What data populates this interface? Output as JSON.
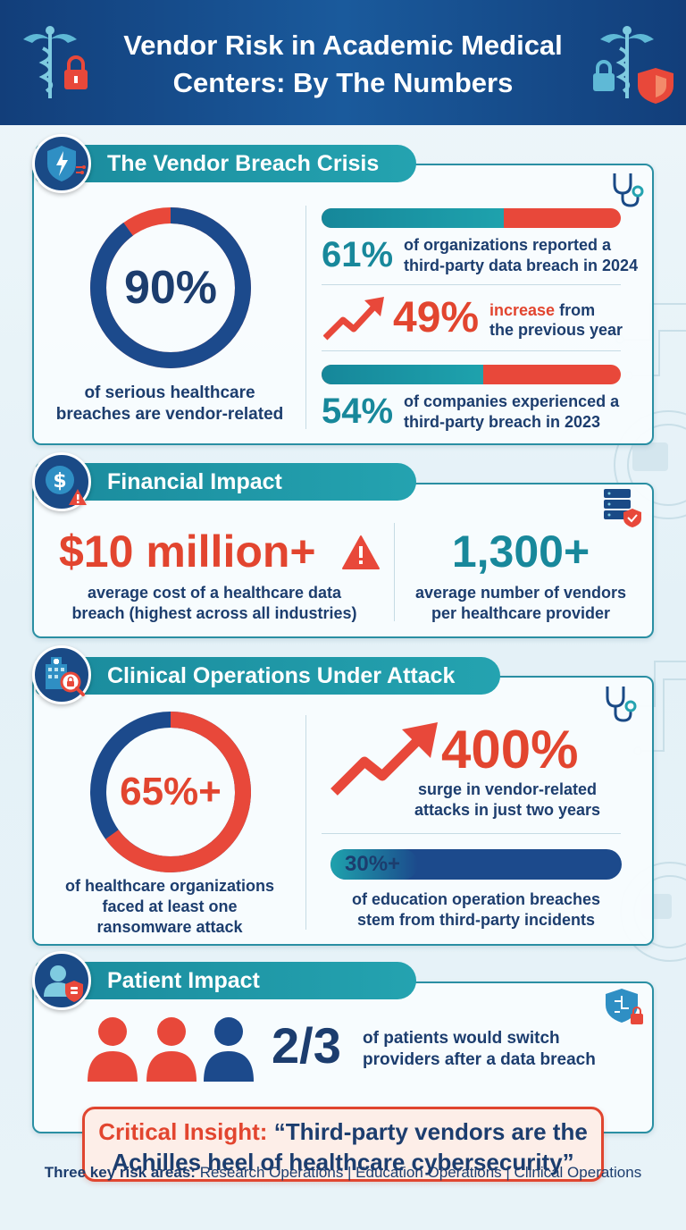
{
  "title_line1": "Vendor Risk in Academic Medical",
  "title_line2": "Centers: By The Numbers",
  "colors": {
    "navy": "#1c3d6e",
    "teal": "#18889b",
    "red": "#e2452f"
  },
  "section1": {
    "title": "The Vendor Breach Crisis",
    "donut_value": "90%",
    "donut_fraction": 0.9,
    "donut_caption_line1": "of serious healthcare",
    "donut_caption_line2": "breaches are vendor-related",
    "stat1_value": "61%",
    "stat1_fraction": 0.61,
    "stat1_line1": "of organizations reported a",
    "stat1_line2": "third-party data breach in 2024",
    "stat2_value": "49%",
    "stat2_word": "increase",
    "stat2_from": "from",
    "stat2_line2": "the previous year",
    "stat3_value": "54%",
    "stat3_fraction": 0.54,
    "stat3_line1": "of companies experienced a",
    "stat3_line2": "third-party breach in 2023"
  },
  "section2": {
    "title": "Financial Impact",
    "cost_value": "$10 million+",
    "cost_line1": "average cost of a healthcare data",
    "cost_line2": "breach (highest across all industries)",
    "vendors_value": "1,300+",
    "vendors_line1": "average number of vendors",
    "vendors_line2": "per healthcare provider"
  },
  "section3": {
    "title": "Clinical Operations Under Attack",
    "donut_value": "65%+",
    "donut_fraction": 0.65,
    "donut_line1": "of healthcare organizations",
    "donut_line2": "faced at least one",
    "donut_line3": "ransomware attack",
    "surge_value": "400%",
    "surge_line1": "surge in vendor-related",
    "surge_line2": "attacks in just two years",
    "edu_value": "30%+",
    "edu_fraction": 0.3,
    "edu_line1": "of education operation breaches",
    "edu_line2": "stem from third-party incidents"
  },
  "section4": {
    "title": "Patient Impact",
    "value": "2/3",
    "patient_fraction": 0.667,
    "line1": "of patients would switch",
    "line2": "providers after a data breach"
  },
  "insight": {
    "label": "Critical Insight:",
    "quote_line1": "“Third-party vendors are the",
    "quote_line2": "Achilles heel of healthcare cybersecurity”"
  },
  "footer": {
    "label": "Three key risk areas:",
    "areas": "Research Operations | Education Operations | Clinical Operations"
  },
  "icons": {
    "header_left": "caduceus-lock-icon",
    "header_right": "caduceus-shield-icon",
    "s1_badge": "shield-lightning-icon",
    "s2_badge": "dollar-warning-icon",
    "s3_badge": "hospital-lock-icon",
    "s4_badge": "patient-data-icon",
    "stethoscope": "stethoscope-icon",
    "server": "server-shield-icon",
    "trend_up": "trend-up-arrow-icon",
    "warning": "warning-icon",
    "people": "people-icon",
    "shield_circuit": "shield-circuit-icon"
  }
}
